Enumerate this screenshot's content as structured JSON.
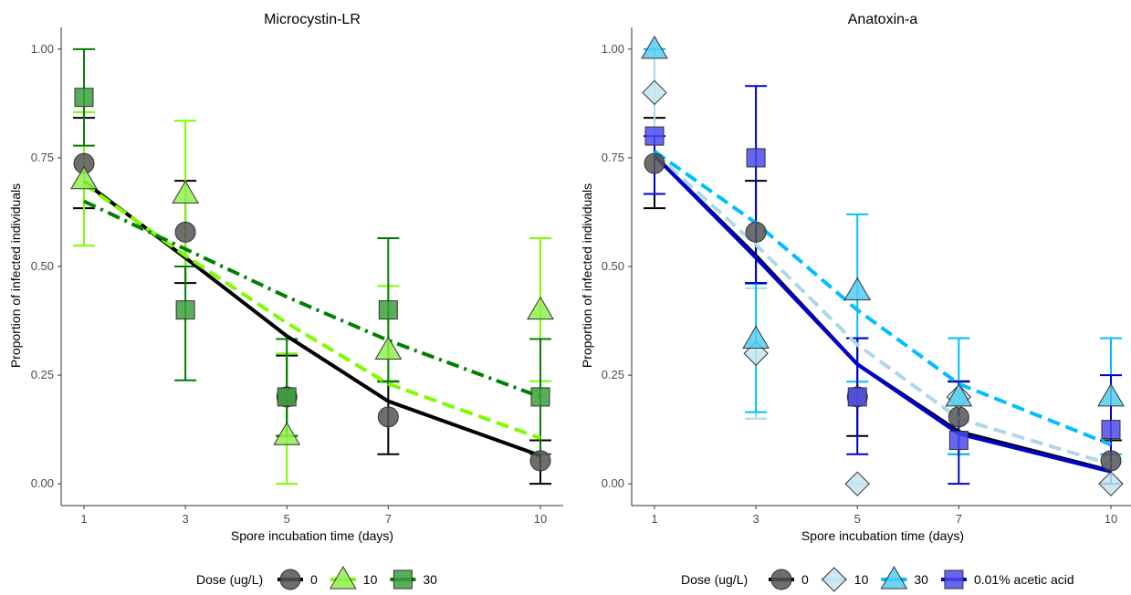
{
  "chart_data": [
    {
      "type": "line",
      "title": "Microcystin-LR",
      "xlabel": "Spore incubation time (days)",
      "ylabel": "Proportion of infected individuals",
      "x": [
        1,
        3,
        5,
        7,
        10
      ],
      "x_tick_labels": [
        "1",
        "3",
        "5",
        "7",
        "10"
      ],
      "y_tick_labels": [
        "0.00",
        "0.25",
        "0.50",
        "0.75",
        "1.00"
      ],
      "xlim": [
        0.55,
        10.45
      ],
      "ylim": [
        -0.05,
        1.05
      ],
      "grid": false,
      "legend": {
        "title": "Dose (ug/L)",
        "position": "bottom",
        "entries": [
          "0",
          "10",
          "30"
        ]
      },
      "series": [
        {
          "name": "0",
          "color": "#000000",
          "fill": "#555555",
          "marker": "circle",
          "line": "solid",
          "points": [
            0.737,
            0.579,
            0.2,
            0.154,
            0.053
          ],
          "err_low": [
            0.634,
            0.462,
            0.11,
            0.068,
            0.0
          ],
          "err_high": [
            0.842,
            0.697,
            0.295,
            0.236,
            0.1
          ],
          "fit": [
            0.695,
            0.52,
            0.34,
            0.19,
            0.065
          ]
        },
        {
          "name": "10",
          "color": "#7CFC00",
          "fill": "#90EE50",
          "marker": "triangle",
          "line": "dashed",
          "points": [
            0.7,
            0.667,
            0.111,
            0.308,
            0.4
          ],
          "err_low": [
            0.548,
            0.5,
            0.0,
            0.235,
            0.236
          ],
          "err_high": [
            0.855,
            0.835,
            0.3,
            0.455,
            0.565
          ],
          "fit": [
            0.69,
            0.525,
            0.37,
            0.23,
            0.105
          ]
        },
        {
          "name": "30",
          "color": "#008000",
          "fill": "#3CA03C",
          "marker": "square",
          "line": "dot-dash",
          "points": [
            0.889,
            0.4,
            0.2,
            0.4,
            0.2
          ],
          "err_low": [
            0.778,
            0.238,
            0.11,
            0.235,
            0.068
          ],
          "err_high": [
            1.0,
            0.5,
            0.333,
            0.565,
            0.333
          ],
          "fit": [
            0.65,
            0.54,
            0.43,
            0.33,
            0.2
          ]
        }
      ]
    },
    {
      "type": "line",
      "title": "Anatoxin-a",
      "xlabel": "Spore incubation time (days)",
      "ylabel": "Proportion of infected individuals",
      "x": [
        1,
        3,
        5,
        7,
        10
      ],
      "x_tick_labels": [
        "1",
        "3",
        "5",
        "7",
        "10"
      ],
      "y_tick_labels": [
        "0.00",
        "0.25",
        "0.50",
        "0.75",
        "1.00"
      ],
      "xlim": [
        0.55,
        10.45
      ],
      "ylim": [
        -0.05,
        1.05
      ],
      "grid": false,
      "legend": {
        "title": "Dose (ug/L)",
        "position": "bottom",
        "entries": [
          "0",
          "10",
          "30",
          "0.01% acetic acid"
        ]
      },
      "series": [
        {
          "name": "0",
          "color": "#000000",
          "fill": "#555555",
          "marker": "circle",
          "line": "solid",
          "points": [
            0.737,
            0.579,
            0.2,
            0.154,
            0.053
          ],
          "err_low": [
            0.634,
            0.462,
            0.11,
            0.068,
            0.0
          ],
          "err_high": [
            0.842,
            0.697,
            0.335,
            0.236,
            0.1
          ],
          "fit": [
            0.755,
            0.525,
            0.275,
            0.12,
            0.03
          ]
        },
        {
          "name": "10",
          "color": "#ADD8E6",
          "fill": "#C6E4EE",
          "marker": "diamond",
          "line": "dashed",
          "points": [
            0.9,
            0.3,
            0.0,
            0.2,
            0.0
          ],
          "err_low": [
            0.8,
            0.15,
            0.0,
            0.068,
            0.0
          ],
          "err_high": [
            1.0,
            0.45,
            0.0,
            0.335,
            0.0
          ],
          "fit": [
            0.76,
            0.55,
            0.32,
            0.15,
            0.045
          ]
        },
        {
          "name": "30",
          "color": "#00BFFF",
          "fill": "#55CCF2",
          "marker": "triangle",
          "line": "dashed",
          "points": [
            1.0,
            0.333,
            0.444,
            0.2,
            0.2
          ],
          "err_low": [
            1.0,
            0.165,
            0.235,
            0.068,
            0.068
          ],
          "err_high": [
            1.0,
            0.46,
            0.62,
            0.335,
            0.335
          ],
          "fit": [
            0.765,
            0.6,
            0.4,
            0.23,
            0.09
          ]
        },
        {
          "name": "0.01% acetic acid",
          "color": "#0000CD",
          "fill": "#4B4BEB",
          "marker": "square",
          "line": "solid",
          "points": [
            0.8,
            0.75,
            0.2,
            0.1,
            0.125
          ],
          "err_low": [
            0.667,
            0.462,
            0.068,
            0.0,
            0.0
          ],
          "err_high": [
            0.8,
            0.915,
            0.335,
            0.235,
            0.25
          ],
          "fit": [
            0.755,
            0.52,
            0.275,
            0.115,
            0.028
          ]
        }
      ]
    }
  ]
}
